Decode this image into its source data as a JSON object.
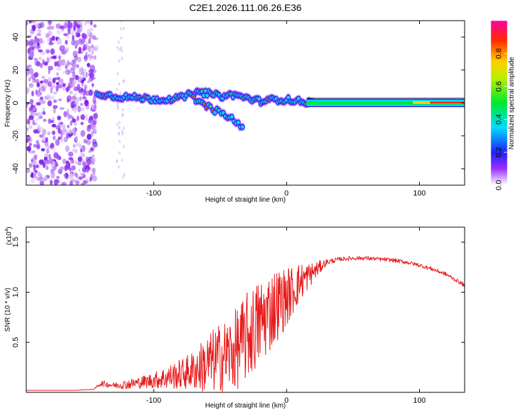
{
  "title": "C2E1.2026.111.06.26.E36",
  "chart_data": [
    {
      "type": "heatmap",
      "name": "spectrogram",
      "xlabel": "Height of straight line (km)",
      "ylabel": "Frequency (Hz)",
      "xlim": [
        -196,
        134
      ],
      "ylim": [
        -50,
        50
      ],
      "xticks": [
        -100,
        0,
        100
      ],
      "yticks": [
        -40,
        -20,
        0,
        20,
        40
      ],
      "colorbar": {
        "label": "Normalized spectral amplitude",
        "range": [
          0,
          1
        ],
        "ticks": [
          "0.0",
          "0.2",
          "0.4",
          "0.6",
          "0.8"
        ],
        "tick_values": [
          0.0,
          0.2,
          0.4,
          0.6,
          0.8
        ]
      },
      "features": [
        {
          "description": "noise",
          "x_range": [
            -196,
            -143
          ],
          "y_range": [
            -50,
            50
          ],
          "amplitude": 0.1
        },
        {
          "description": "upper track",
          "points": [
            [
              -143,
              6
            ],
            [
              -130,
              4
            ],
            [
              -110,
              3
            ],
            [
              -95,
              2
            ],
            [
              -80,
              3
            ],
            [
              -70,
              6
            ],
            [
              -60,
              6
            ],
            [
              -50,
              4
            ],
            [
              -40,
              5
            ],
            [
              -30,
              3
            ],
            [
              -20,
              1
            ],
            [
              -10,
              2
            ],
            [
              0,
              2
            ],
            [
              10,
              1
            ],
            [
              20,
              0
            ]
          ]
        },
        {
          "description": "lower track",
          "points": [
            [
              -70,
              3
            ],
            [
              -60,
              -2
            ],
            [
              -50,
              -6
            ],
            [
              -40,
              -10
            ],
            [
              -33,
              -16
            ]
          ]
        },
        {
          "description": "steady carrier",
          "points": [
            [
              15,
              0
            ],
            [
              50,
              0
            ],
            [
              80,
              0
            ],
            [
              100,
              0
            ],
            [
              120,
              1
            ],
            [
              134,
              1
            ]
          ]
        }
      ]
    },
    {
      "type": "line",
      "name": "snr",
      "xlabel": "Height of straight line (km)",
      "ylabel": "SNR (10 * v/v)",
      "scale_label": "(x10",
      "scale_exp": "4",
      "scale_close": ")",
      "xlim": [
        -196,
        134
      ],
      "ylim": [
        0,
        1.65
      ],
      "xticks": [
        -100,
        0,
        100
      ],
      "yticks": [
        0.5,
        1.0,
        1.5
      ],
      "ytick_labels": [
        "0.5",
        "1.0",
        "1.5"
      ],
      "color": "#e8191a",
      "series": [
        {
          "name": "SNR",
          "x": [
            -196,
            -180,
            -160,
            -145,
            -140,
            -130,
            -120,
            -110,
            -100,
            -90,
            -80,
            -70,
            -60,
            -50,
            -40,
            -30,
            -20,
            -10,
            0,
            10,
            20,
            30,
            40,
            50,
            60,
            70,
            80,
            90,
            100,
            110,
            120,
            130,
            134
          ],
          "y": [
            0.02,
            0.02,
            0.02,
            0.03,
            0.09,
            0.07,
            0.08,
            0.1,
            0.12,
            0.15,
            0.18,
            0.22,
            0.28,
            0.35,
            0.4,
            0.55,
            0.7,
            0.85,
            0.95,
            1.1,
            1.2,
            1.3,
            1.33,
            1.34,
            1.34,
            1.33,
            1.32,
            1.3,
            1.27,
            1.23,
            1.18,
            1.1,
            1.07
          ],
          "noise_amplitude": [
            0,
            0,
            0,
            0,
            0.03,
            0.03,
            0.05,
            0.06,
            0.08,
            0.12,
            0.15,
            0.2,
            0.3,
            0.35,
            0.4,
            0.45,
            0.45,
            0.4,
            0.3,
            0.2,
            0.1,
            0.03,
            0.02,
            0.02,
            0.02,
            0.02,
            0.02,
            0.02,
            0.02,
            0.02,
            0.02,
            0.02,
            0.02
          ]
        }
      ]
    }
  ]
}
